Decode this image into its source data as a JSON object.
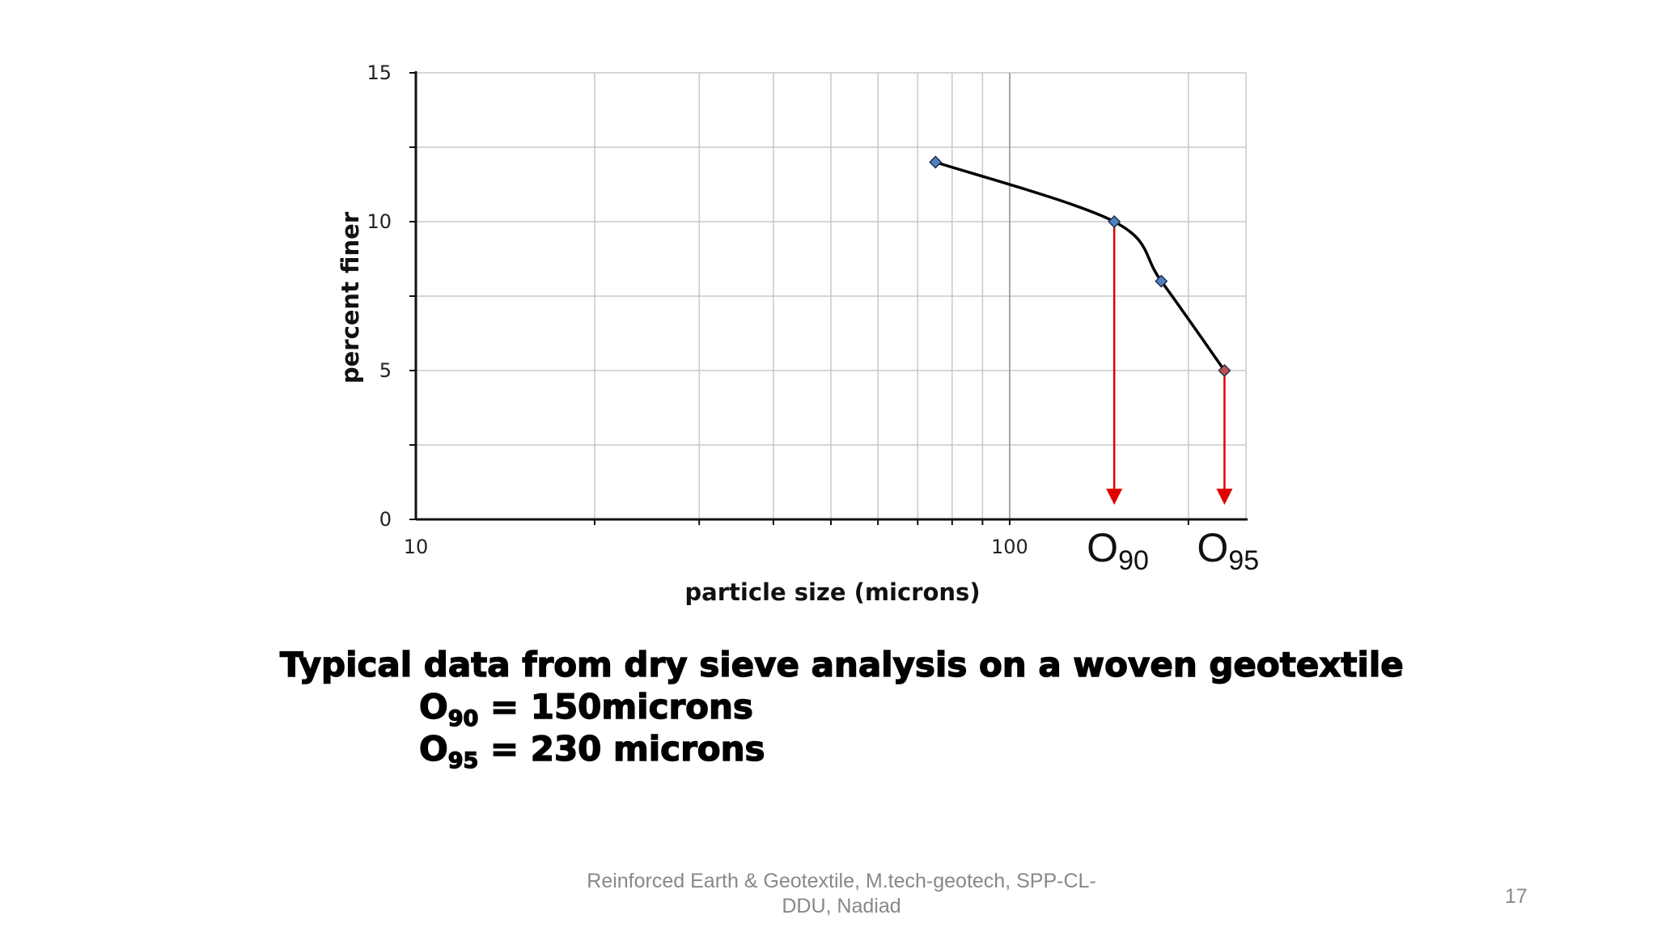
{
  "chart_data": {
    "type": "line",
    "xscale": "log",
    "xlim": [
      10,
      250
    ],
    "ylim": [
      0,
      15
    ],
    "xticks": [
      "10",
      "100"
    ],
    "yticks": [
      "0",
      "5",
      "10",
      "15"
    ],
    "xlabel": "particle size (microns)",
    "ylabel": "percent finer",
    "grid": true,
    "series": [
      {
        "x": [
          75,
          150,
          180,
          230
        ],
        "y": [
          12,
          10,
          8,
          5
        ],
        "marker_colors": [
          "#4f81bd",
          "#4f81bd",
          "#4f81bd",
          "#c0504d"
        ]
      }
    ],
    "annotations": [
      {
        "label_main": "O",
        "label_sub": "90",
        "x": 150,
        "arrow_color": "#e00000"
      },
      {
        "label_main": "O",
        "label_sub": "95",
        "x": 230,
        "arrow_color": "#e00000"
      }
    ]
  },
  "caption": {
    "line1": "Typical data from dry sieve analysis on a woven geotextile",
    "o90_main": "O",
    "o90_sub": "90",
    "o90_value": " = 150microns",
    "o95_main": "O",
    "o95_sub": "95",
    "o95_value": " = 230 microns"
  },
  "footer": {
    "line1": "Reinforced Earth & Geotextile, M.tech-geotech, SPP-CL-",
    "line2": "DDU, Nadiad",
    "page_number": "17"
  }
}
